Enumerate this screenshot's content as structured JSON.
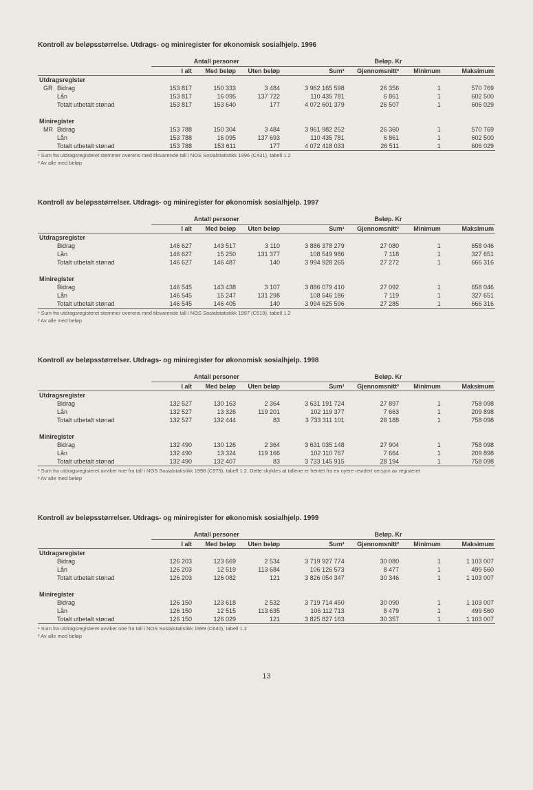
{
  "page_number": "13",
  "col_headers": {
    "group_persons": "Antall personer",
    "group_amount": "Beløp. Kr",
    "i_alt": "I alt",
    "med": "Med beløp",
    "uten": "Uten beløp",
    "sum": "Sum¹",
    "avg": "Gjennomsnitt²",
    "min": "Minimum",
    "max": "Maksimum"
  },
  "section_labels": {
    "utdrag": "Utdragsregister",
    "mini": "Miniregister",
    "bidrag": "Bidrag",
    "lan": "Lån",
    "totalt": "Totalt utbetalt stønad"
  },
  "tables": [
    {
      "title": "Kontroll av beløpsstørrelse. Utdrags- og miniregister for økonomisk sosialhjelp. 1996",
      "utdrag_tag": "GR",
      "mini_tag": "MR",
      "utdrag": [
        [
          "153 817",
          "150 333",
          "3 484",
          "3 962 165 598",
          "26 356",
          "1",
          "570 769"
        ],
        [
          "153 817",
          "16 095",
          "137 722",
          "110 435 781",
          "6 861",
          "1",
          "602 500"
        ],
        [
          "153 817",
          "153 640",
          "177",
          "4 072 601 379",
          "26 507",
          "1",
          "606 029"
        ]
      ],
      "mini": [
        [
          "153 788",
          "150 304",
          "3 484",
          "3 961 982 252",
          "26 360",
          "1",
          "570 769"
        ],
        [
          "153 788",
          "16 095",
          "137 693",
          "110 435 781",
          "6 861",
          "1",
          "602 500"
        ],
        [
          "153 788",
          "153 611",
          "177",
          "4 072 418 033",
          "26 511",
          "1",
          "606 029"
        ]
      ],
      "foot1": "¹ Sum fra utdragsregisteret stemmer overens med tilsvarende tall i NOS Sosialstatistikk 1996 (C431), tabell 1.2",
      "foot2": "² Av alle med beløp"
    },
    {
      "title": "Kontroll av beløpsstørrelser. Utdrags- og miniregister for økonomisk sosialhjelp. 1997",
      "utdrag_tag": "",
      "mini_tag": "",
      "utdrag": [
        [
          "146 627",
          "143 517",
          "3 110",
          "3 886 378 279",
          "27 080",
          "1",
          "658 046"
        ],
        [
          "146 627",
          "15 250",
          "131 377",
          "108 549 986",
          "7 118",
          "1",
          "327 651"
        ],
        [
          "146 627",
          "146 487",
          "140",
          "3 994 928 265",
          "27 272",
          "1",
          "666 316"
        ]
      ],
      "mini": [
        [
          "146 545",
          "143 438",
          "3 107",
          "3 886 079 410",
          "27 092",
          "1",
          "658 046"
        ],
        [
          "146 545",
          "15 247",
          "131 298",
          "108 546 186",
          "7 119",
          "1",
          "327 651"
        ],
        [
          "146 545",
          "146 405",
          "140",
          "3 994 625 596",
          "27 285",
          "1",
          "666 316"
        ]
      ],
      "foot1": "¹ Sum fra utdragsregisteret stemmer overens med tilsvarende tall i NOS Sosialstatistikk 1997 (C519), tabell 1.2",
      "foot2": "² Av alle med beløp"
    },
    {
      "title": "Kontroll av beløpsstørrelser. Utdrags- og miniregister for økonomisk sosialhjelp. 1998",
      "utdrag_tag": "",
      "mini_tag": "",
      "utdrag": [
        [
          "132 527",
          "130 163",
          "2 364",
          "3 631 191 724",
          "27 897",
          "1",
          "758 098"
        ],
        [
          "132 527",
          "13 326",
          "119 201",
          "102 119 377",
          "7 663",
          "1",
          "209 898"
        ],
        [
          "132 527",
          "132 444",
          "83",
          "3 733 311 101",
          "28 188",
          "1",
          "758 098"
        ]
      ],
      "mini": [
        [
          "132 490",
          "130 126",
          "2 364",
          "3 631 035 148",
          "27 904",
          "1",
          "758 098"
        ],
        [
          "132 490",
          "13 324",
          "119 166",
          "102 110 767",
          "7 664",
          "1",
          "209 898"
        ],
        [
          "132 490",
          "132 407",
          "83",
          "3 733 145 915",
          "28 194",
          "1",
          "758 098"
        ]
      ],
      "foot1": "¹ Sum fra utdragsregisteret avviker noe fra tall i NOS Sosialstatistikk 1998 (C579), tabell 1.2. Dette skyldes at tallene er hentet fra en nyere revidert versjon av registeret",
      "foot2": "² Av alle med beløp"
    },
    {
      "title": "Kontroll av beløpsstørrelser. Utdrags- og miniregister for økonomisk sosialhjelp. 1999",
      "utdrag_tag": "",
      "mini_tag": "",
      "utdrag": [
        [
          "126 203",
          "123 669",
          "2 534",
          "3 719 927 774",
          "30 080",
          "1",
          "1 103 007"
        ],
        [
          "126 203",
          "12 519",
          "113 684",
          "106 126 573",
          "8 477",
          "1",
          "499 560"
        ],
        [
          "126 203",
          "126 082",
          "121",
          "3 826 054 347",
          "30 346",
          "1",
          "1 103 007"
        ]
      ],
      "mini": [
        [
          "126 150",
          "123 618",
          "2 532",
          "3 719 714 450",
          "30 090",
          "1",
          "1 103 007"
        ],
        [
          "126 150",
          "12 515",
          "113 635",
          "106 112 713",
          "8 479",
          "1",
          "499 560"
        ],
        [
          "126 150",
          "126 029",
          "121",
          "3 825 827 163",
          "30 357",
          "1",
          "1 103 007"
        ]
      ],
      "foot1": "¹ Sum fra utdragsregisteret avviker noe fra tall i NOS Sosialstatistikk 1999 (C640), tabell 1.2",
      "foot2": "² Av alle med beløp"
    }
  ]
}
